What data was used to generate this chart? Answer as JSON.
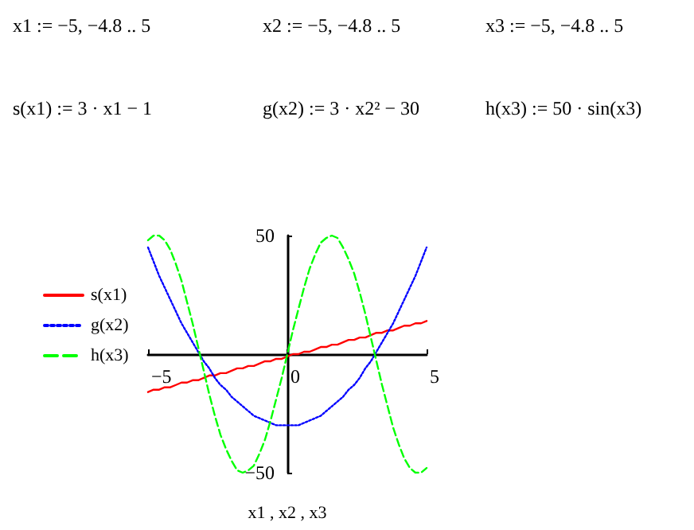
{
  "chart_data": {
    "type": "line",
    "xlabel": "x1 , x2 , x3",
    "annotations": [
      "x1 := −5, −4.8 .. 5",
      "x2 := −5, −4.8 .. 5",
      "x3 := −5, −4.8 .. 5",
      "s(x1) := 3 · x1 − 1",
      "g(x2) := 3 · x2² − 30",
      "h(x3) := 50 · sin(x3)"
    ],
    "x": [
      -5,
      -4.8,
      -4.6,
      -4.4,
      -4.2,
      -4,
      -3.8,
      -3.6,
      -3.4,
      -3.2,
      -3,
      -2.8,
      -2.6,
      -2.4,
      -2.2,
      -2,
      -1.8,
      -1.6,
      -1.4,
      -1.2,
      -1,
      -0.8,
      -0.6,
      -0.4,
      -0.2,
      0,
      0.2,
      0.4,
      0.6,
      0.8,
      1,
      1.2,
      1.4,
      1.6,
      1.8,
      2,
      2.2,
      2.4,
      2.6,
      2.8,
      3,
      3.2,
      3.4,
      3.6,
      3.8,
      4,
      4.2,
      4.4,
      4.6,
      4.8,
      5
    ],
    "series": [
      {
        "name": "s(x1)",
        "color": "#ff0000",
        "line_style": "solid",
        "values": [
          -16,
          -15,
          -15,
          -14,
          -14,
          -13,
          -12,
          -12,
          -11,
          -11,
          -10,
          -9,
          -9,
          -8,
          -8,
          -7,
          -6,
          -6,
          -5,
          -5,
          -4,
          -3,
          -3,
          -2,
          -2,
          -1,
          0,
          0,
          1,
          1,
          2,
          3,
          3,
          4,
          4,
          5,
          6,
          6,
          7,
          7,
          8,
          9,
          9,
          10,
          10,
          11,
          12,
          12,
          13,
          13,
          14
        ]
      },
      {
        "name": "g(x2)",
        "color": "#0000ff",
        "line_style": "dotted",
        "values": [
          45,
          39,
          33,
          28,
          23,
          18,
          13,
          9,
          5,
          1,
          -3,
          -6,
          -10,
          -13,
          -15,
          -18,
          -20,
          -22,
          -24,
          -26,
          -27,
          -28,
          -29,
          -30,
          -30,
          -30,
          -30,
          -30,
          -29,
          -28,
          -27,
          -26,
          -24,
          -22,
          -20,
          -18,
          -15,
          -13,
          -10,
          -6,
          -3,
          1,
          5,
          9,
          13,
          18,
          23,
          28,
          33,
          39,
          45
        ]
      },
      {
        "name": "h(x3)",
        "color": "#00ff00",
        "line_style": "dashed",
        "values": [
          48,
          50,
          50,
          48,
          44,
          38,
          31,
          22,
          13,
          3,
          -7,
          -17,
          -26,
          -34,
          -40,
          -45,
          -49,
          -50,
          -49,
          -47,
          -42,
          -36,
          -28,
          -19,
          -10,
          0,
          10,
          19,
          28,
          36,
          42,
          47,
          49,
          50,
          49,
          45,
          40,
          34,
          26,
          17,
          7,
          -3,
          -13,
          -22,
          -31,
          -38,
          -44,
          -48,
          -50,
          -50,
          -48
        ]
      }
    ],
    "xlim": [
      -5,
      5
    ],
    "xticks": [
      -5,
      0,
      5
    ],
    "ylim": [
      -50,
      50
    ],
    "yticks": [
      -50,
      50
    ],
    "legend": "left",
    "marker": "none"
  }
}
